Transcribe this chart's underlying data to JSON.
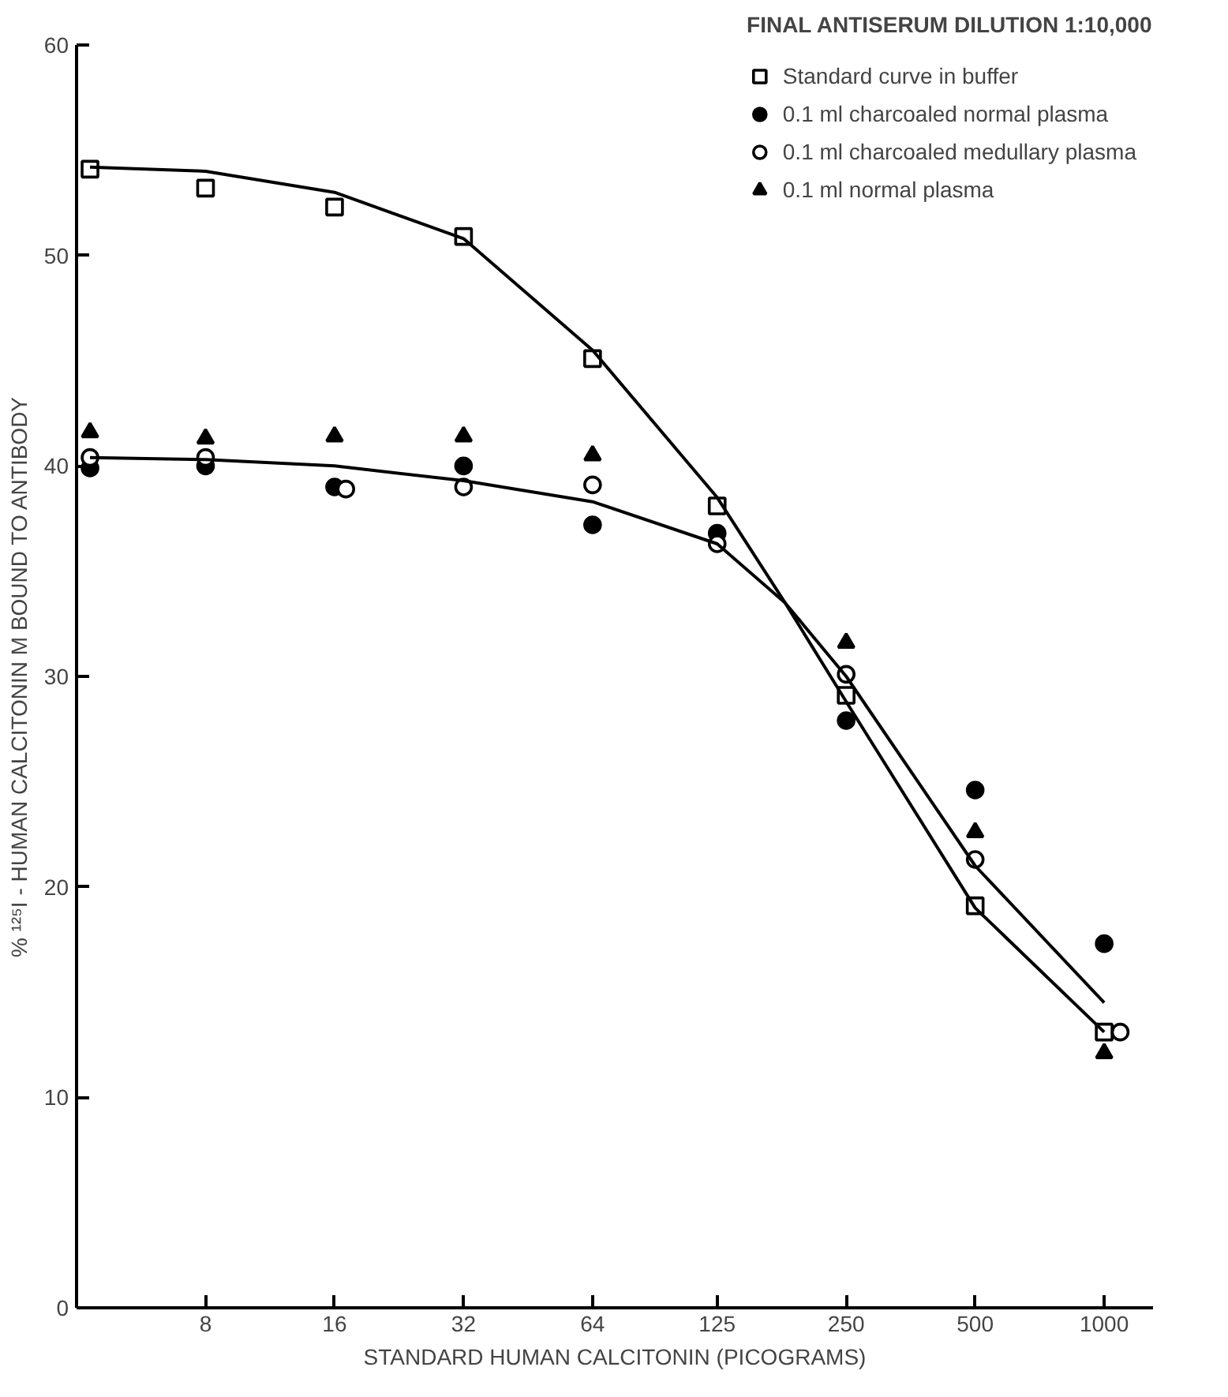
{
  "chart_data": {
    "type": "scatter",
    "title": "FINAL ANTISERUM DILUTION 1:10,000",
    "xlabel": "STANDARD HUMAN CALCITONIN (PICOGRAMS)",
    "ylabel": "% ¹²⁵I - HUMAN CALCITONIN M BOUND TO ANTIBODY",
    "log": "x",
    "xlim": [
      4,
      1300
    ],
    "xticks": [
      8,
      16,
      32,
      64,
      125,
      250,
      500,
      1000
    ],
    "ylim": [
      0,
      60
    ],
    "yticks": [
      0,
      10,
      20,
      30,
      40,
      50,
      60
    ],
    "grid": false,
    "legend": "top right",
    "series": [
      {
        "name": "Standard curve in buffer",
        "color": "#000000",
        "marker": "square_open",
        "x": [
          4.3,
          8,
          16,
          32,
          64,
          125,
          250,
          500,
          1000
        ],
        "values": [
          54.1,
          53.2,
          52.3,
          50.9,
          45.1,
          38.1,
          29.1,
          19.1,
          13.1
        ]
      },
      {
        "name": "0.1 ml charcoaled normal plasma",
        "color": "#000000",
        "marker": "circle",
        "x": [
          4.3,
          8,
          16,
          32,
          64,
          125,
          250,
          500,
          1000
        ],
        "values": [
          39.9,
          40.0,
          39.0,
          40.0,
          37.2,
          36.8,
          27.9,
          24.6,
          17.3
        ]
      },
      {
        "name": "0.1 ml charcoaled medullary plasma",
        "color": "#000000",
        "marker": "circle_open",
        "x": [
          4.3,
          8,
          17,
          32,
          64,
          125,
          250,
          500,
          1090
        ],
        "values": [
          40.4,
          40.4,
          38.9,
          39.0,
          39.1,
          36.3,
          30.1,
          21.3,
          13.1
        ]
      },
      {
        "name": "0.1 ml normal plasma",
        "color": "#000000",
        "marker": "triangle",
        "x": [
          4.3,
          8,
          16,
          32,
          64,
          125,
          250,
          500,
          1000
        ],
        "values": [
          41.6,
          41.3,
          41.4,
          41.4,
          40.5,
          null,
          31.6,
          22.6,
          12.1
        ]
      },
      {
        "type": "line",
        "color": "#000000",
        "x": [
          4.3,
          8,
          16,
          32,
          64,
          125,
          180,
          250,
          500,
          1000
        ],
        "values": [
          54.2,
          54.0,
          53.0,
          50.8,
          45.5,
          38.5,
          33.5,
          28.8,
          19.0,
          13.1
        ]
      },
      {
        "type": "line",
        "color": "#000000",
        "x": [
          4.3,
          8,
          16,
          32,
          64,
          125,
          180,
          250,
          500,
          1000
        ],
        "values": [
          40.4,
          40.3,
          40.0,
          39.3,
          38.3,
          36.3,
          33.5,
          30.0,
          21.0,
          14.5
        ]
      }
    ]
  }
}
